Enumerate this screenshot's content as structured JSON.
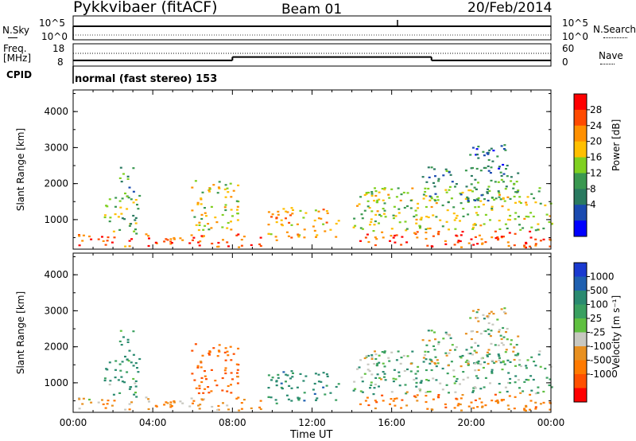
{
  "header": {
    "station": "Pykkvibaer (fitACF)",
    "beam": "Beam 01",
    "date": "20/Feb/2014"
  },
  "top_panels": {
    "nsky_label": "N.Sky",
    "nsearch_label": "N.Search",
    "nsky_ticks": [
      "10^5",
      "10^0"
    ],
    "nsearch_ticks": [
      "10^5",
      "10^0"
    ],
    "freq_label_1": "Freq.",
    "freq_label_2": "[MHz]",
    "freq_ticks": [
      "18",
      "8"
    ],
    "nave_label": "Nave",
    "nave_ticks": [
      "60",
      "0"
    ],
    "cpid_label": "CPID",
    "cpid_text": "normal (fast stereo) 153"
  },
  "power_colorbar": {
    "label": "Power [dB]",
    "ticks": [
      "28",
      "24",
      "20",
      "16",
      "12",
      "8",
      "4"
    ],
    "colors": [
      "#ff0000",
      "#ff4a00",
      "#ff9000",
      "#ffbf00",
      "#7fd020",
      "#3a9850",
      "#2a7a60",
      "#1a4ab0",
      "#0000ff"
    ]
  },
  "velocity_colorbar": {
    "label": "Velocity [m s⁻¹]",
    "ticks": [
      "1000",
      "500",
      "100",
      "25",
      "-25",
      "-100",
      "-500",
      "-1000"
    ],
    "colors": [
      "#1a3ad0",
      "#1f60b0",
      "#2a8a70",
      "#3aa060",
      "#60c040",
      "#c8c8c0",
      "#e89020",
      "#ff7a00",
      "#ff5000",
      "#ff0000"
    ]
  },
  "chart_data": {
    "type": "heatmap",
    "title": "Pykkvibaer (fitACF)  Beam 01  20/Feb/2014",
    "xlabel": "Time UT",
    "ylabel": "Slant Range [km]",
    "x_ticks": [
      "00:00",
      "04:00",
      "08:00",
      "12:00",
      "16:00",
      "20:00",
      "00:00"
    ],
    "y_ticks": [
      "1000",
      "2000",
      "3000",
      "4000"
    ],
    "xlim_hours": [
      0,
      24
    ],
    "ylim_km": [
      180,
      4600
    ],
    "panels": [
      "Power [dB]",
      "Velocity [m s⁻¹]"
    ],
    "echo_regions": [
      {
        "t0": 0.1,
        "t1": 9.5,
        "r0": 250,
        "r1": 620,
        "power": 26,
        "velocity": -60
      },
      {
        "t0": 1.5,
        "t1": 3.3,
        "r0": 600,
        "r1": 1700,
        "power": 14,
        "velocity": 90
      },
      {
        "t0": 2.3,
        "t1": 3.0,
        "r0": 1600,
        "r1": 2600,
        "power": 10,
        "velocity": 150
      },
      {
        "t0": 5.9,
        "t1": 8.4,
        "r0": 700,
        "r1": 2100,
        "power": 18,
        "velocity": -300
      },
      {
        "t0": 9.7,
        "t1": 13.3,
        "r0": 450,
        "r1": 1350,
        "power": 22,
        "velocity": 200
      },
      {
        "t0": 14.0,
        "t1": 24.0,
        "r0": 250,
        "r1": 700,
        "power": 26,
        "velocity": -200
      },
      {
        "t0": 14.0,
        "t1": 24.0,
        "r0": 700,
        "r1": 1900,
        "power": 16,
        "velocity": 60
      },
      {
        "t0": 17.5,
        "t1": 22.3,
        "r0": 1500,
        "r1": 2500,
        "power": 9,
        "velocity": 10
      },
      {
        "t0": 19.8,
        "t1": 21.8,
        "r0": 2300,
        "r1": 3100,
        "power": 6,
        "velocity": 5
      }
    ],
    "frequency_steps": [
      {
        "t0": 0,
        "t1": 8.0,
        "mhz": 9.5
      },
      {
        "t0": 8.0,
        "t1": 18.0,
        "mhz": 11.5
      },
      {
        "t0": 18.0,
        "t1": 24.0,
        "mhz": 9.5
      }
    ]
  }
}
